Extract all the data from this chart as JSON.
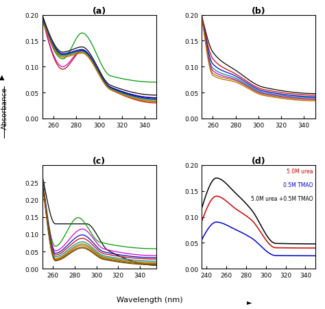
{
  "panels": [
    "(a)",
    "(b)",
    "(c)",
    "(d)"
  ],
  "xlabel": "Wavelength (nm)",
  "ylabel": "Absorbance",
  "panel_a_colors": [
    "#009900",
    "#000000",
    "#cc0000",
    "#cc00cc",
    "#0000cc",
    "#000077",
    "#008888",
    "#888800",
    "#cc6600",
    "#884400"
  ],
  "panel_b_colors": [
    "#000000",
    "#cc0000",
    "#0000cc",
    "#008888",
    "#cc00cc",
    "#887700",
    "#cc6600"
  ],
  "panel_c_colors": [
    "#000000",
    "#009900",
    "#cc00cc",
    "#0000cc",
    "#cc0000",
    "#008888",
    "#887700",
    "#cc6600",
    "#666600",
    "#884400"
  ],
  "panel_d_legend": [
    "5.0M urea",
    "0.5M TMAO",
    "5.0M urea +0.5M TMAO"
  ],
  "panel_d_colors": [
    "#cc0000",
    "#0000cc",
    "#000000"
  ]
}
